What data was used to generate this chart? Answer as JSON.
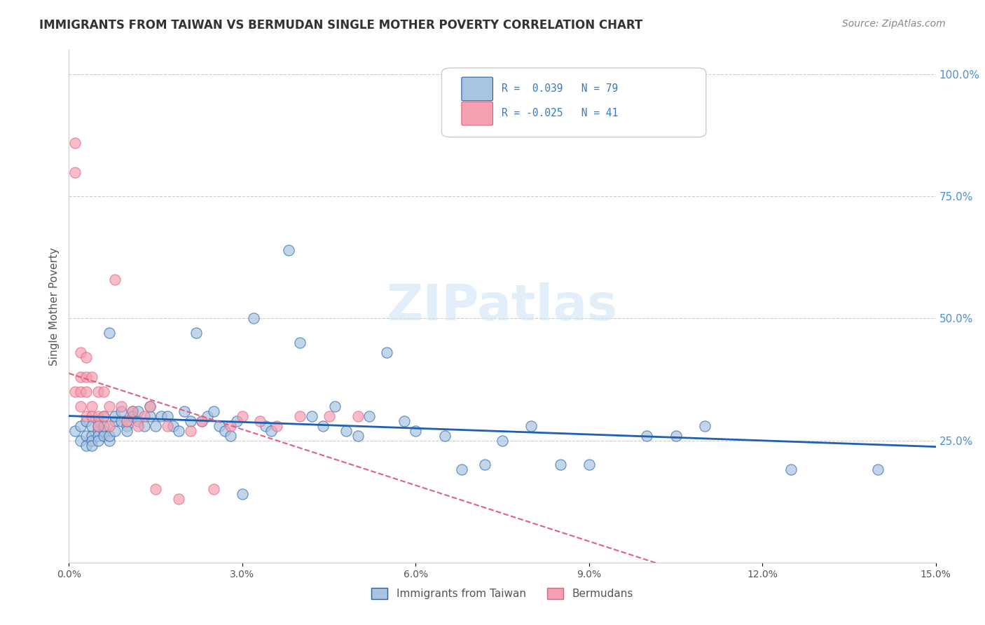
{
  "title": "IMMIGRANTS FROM TAIWAN VS BERMUDAN SINGLE MOTHER POVERTY CORRELATION CHART",
  "source": "Source: ZipAtlas.com",
  "ylabel": "Single Mother Poverty",
  "right_yticks": [
    "100.0%",
    "75.0%",
    "50.0%",
    "25.0%"
  ],
  "right_ytick_vals": [
    1.0,
    0.75,
    0.5,
    0.25
  ],
  "xlim": [
    0.0,
    0.15
  ],
  "ylim": [
    0.0,
    1.05
  ],
  "watermark": "ZIPatlas",
  "legend_label1": "Immigrants from Taiwan",
  "legend_label2": "Bermudans",
  "taiwan_color": "#a8c4e0",
  "bermudan_color": "#f4a0b0",
  "taiwan_line_color": "#2060b0",
  "bermudan_line_color": "#e06080",
  "taiwan_scatter": {
    "x": [
      0.001,
      0.002,
      0.002,
      0.003,
      0.003,
      0.003,
      0.004,
      0.004,
      0.004,
      0.004,
      0.005,
      0.005,
      0.005,
      0.005,
      0.005,
      0.006,
      0.006,
      0.006,
      0.006,
      0.007,
      0.007,
      0.007,
      0.008,
      0.008,
      0.008,
      0.009,
      0.009,
      0.01,
      0.01,
      0.01,
      0.011,
      0.011,
      0.012,
      0.012,
      0.013,
      0.014,
      0.014,
      0.015,
      0.016,
      0.017,
      0.018,
      0.019,
      0.02,
      0.021,
      0.022,
      0.023,
      0.024,
      0.025,
      0.026,
      0.027,
      0.028,
      0.029,
      0.03,
      0.032,
      0.034,
      0.035,
      0.038,
      0.04,
      0.042,
      0.044,
      0.046,
      0.048,
      0.05,
      0.052,
      0.055,
      0.058,
      0.06,
      0.065,
      0.068,
      0.072,
      0.075,
      0.08,
      0.085,
      0.09,
      0.1,
      0.105,
      0.11,
      0.125,
      0.14
    ],
    "y": [
      0.27,
      0.25,
      0.28,
      0.26,
      0.24,
      0.29,
      0.26,
      0.28,
      0.25,
      0.24,
      0.27,
      0.26,
      0.25,
      0.29,
      0.28,
      0.3,
      0.27,
      0.26,
      0.28,
      0.25,
      0.47,
      0.26,
      0.29,
      0.27,
      0.3,
      0.29,
      0.31,
      0.28,
      0.27,
      0.29,
      0.31,
      0.3,
      0.29,
      0.31,
      0.28,
      0.3,
      0.32,
      0.28,
      0.3,
      0.3,
      0.28,
      0.27,
      0.31,
      0.29,
      0.47,
      0.29,
      0.3,
      0.31,
      0.28,
      0.27,
      0.26,
      0.29,
      0.14,
      0.5,
      0.28,
      0.27,
      0.64,
      0.45,
      0.3,
      0.28,
      0.32,
      0.27,
      0.26,
      0.3,
      0.43,
      0.29,
      0.27,
      0.26,
      0.19,
      0.2,
      0.25,
      0.28,
      0.2,
      0.2,
      0.26,
      0.26,
      0.28,
      0.19,
      0.19
    ]
  },
  "bermudan_scatter": {
    "x": [
      0.001,
      0.001,
      0.001,
      0.002,
      0.002,
      0.002,
      0.002,
      0.003,
      0.003,
      0.003,
      0.003,
      0.004,
      0.004,
      0.004,
      0.005,
      0.005,
      0.005,
      0.006,
      0.006,
      0.007,
      0.007,
      0.008,
      0.009,
      0.01,
      0.011,
      0.012,
      0.013,
      0.014,
      0.015,
      0.017,
      0.019,
      0.021,
      0.023,
      0.025,
      0.028,
      0.03,
      0.033,
      0.036,
      0.04,
      0.045,
      0.05
    ],
    "y": [
      0.86,
      0.8,
      0.35,
      0.43,
      0.38,
      0.35,
      0.32,
      0.42,
      0.38,
      0.35,
      0.3,
      0.38,
      0.32,
      0.3,
      0.35,
      0.3,
      0.28,
      0.35,
      0.3,
      0.32,
      0.28,
      0.58,
      0.32,
      0.29,
      0.31,
      0.28,
      0.3,
      0.32,
      0.15,
      0.28,
      0.13,
      0.27,
      0.29,
      0.15,
      0.28,
      0.3,
      0.29,
      0.28,
      0.3,
      0.3,
      0.3
    ]
  }
}
